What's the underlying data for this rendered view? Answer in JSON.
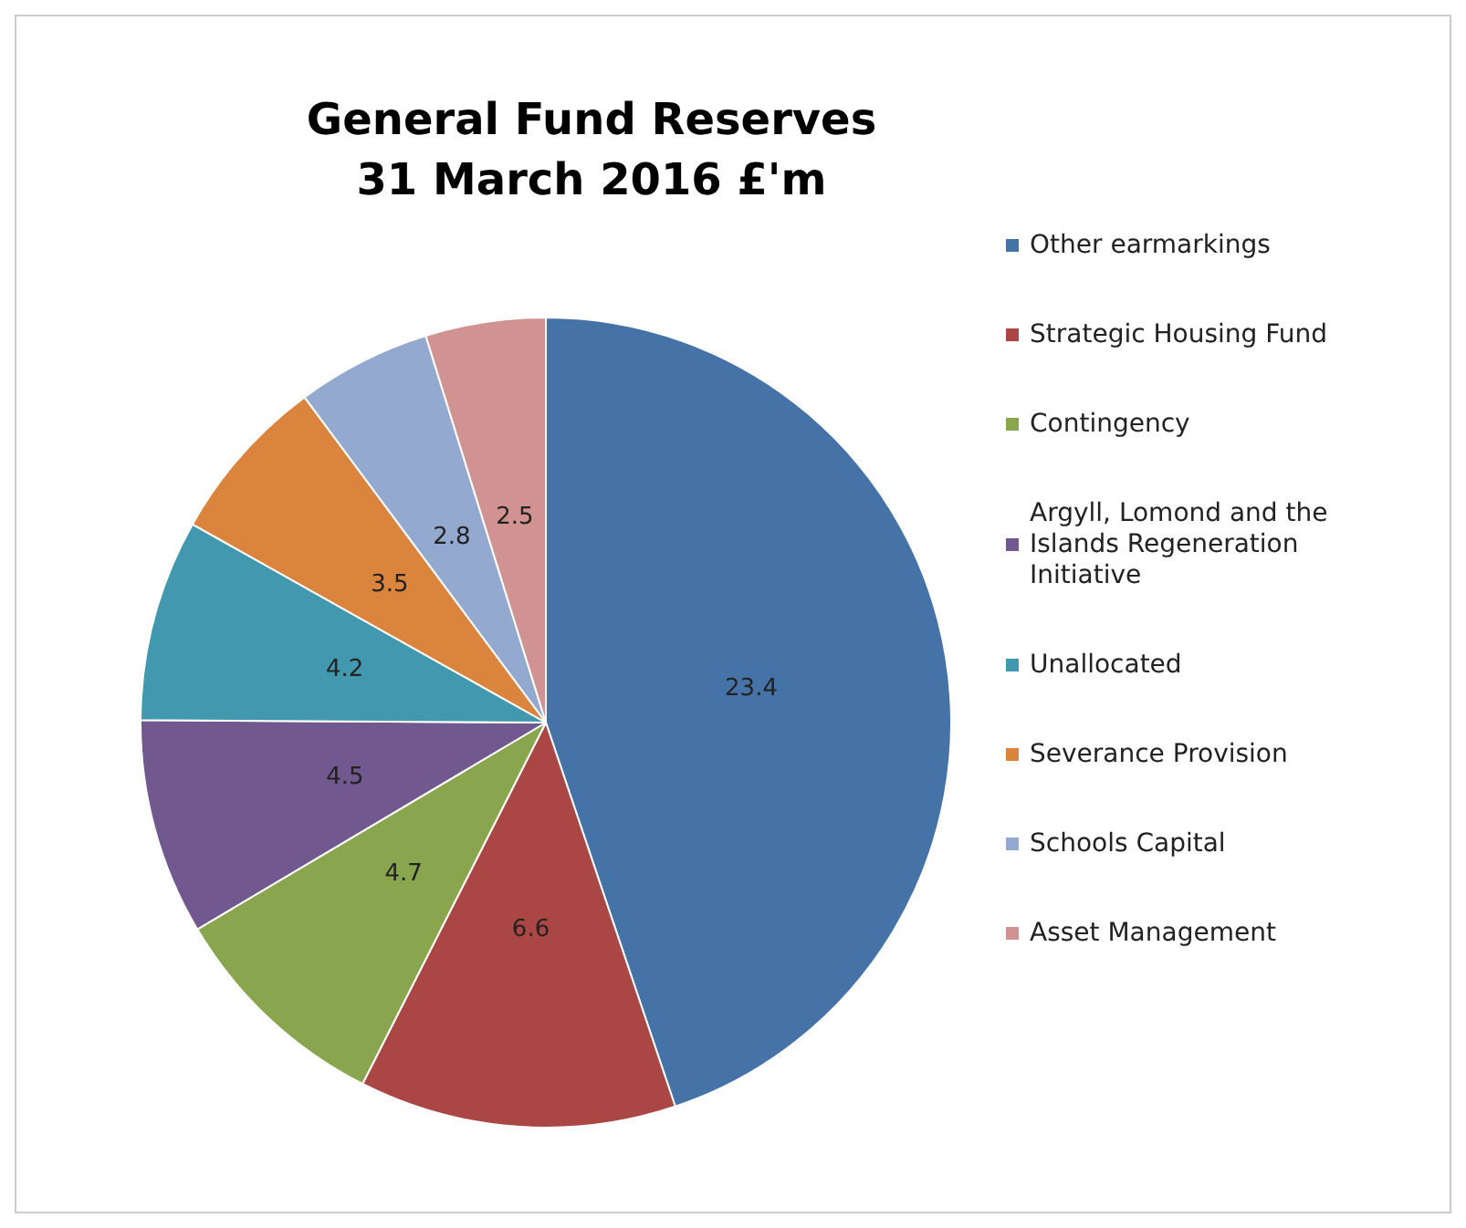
{
  "chart_data": {
    "type": "pie",
    "title": "General Fund Reserves\n31 March 2016 £'m",
    "categories": [
      "Other earmarkings",
      "Strategic Housing Fund",
      "Contingency",
      "Argyll, Lomond and the Islands Regeneration Initiative",
      "Unallocated",
      "Severance Provision",
      "Schools Capital",
      "Asset Management"
    ],
    "values": [
      23.4,
      6.6,
      4.7,
      4.5,
      4.2,
      3.5,
      2.8,
      2.5
    ],
    "colors": [
      "#4572a7",
      "#aa4643",
      "#89a54e",
      "#71588f",
      "#4198af",
      "#db843d",
      "#93a9cf",
      "#d19392"
    ],
    "data_labels": true,
    "legend": "right"
  }
}
